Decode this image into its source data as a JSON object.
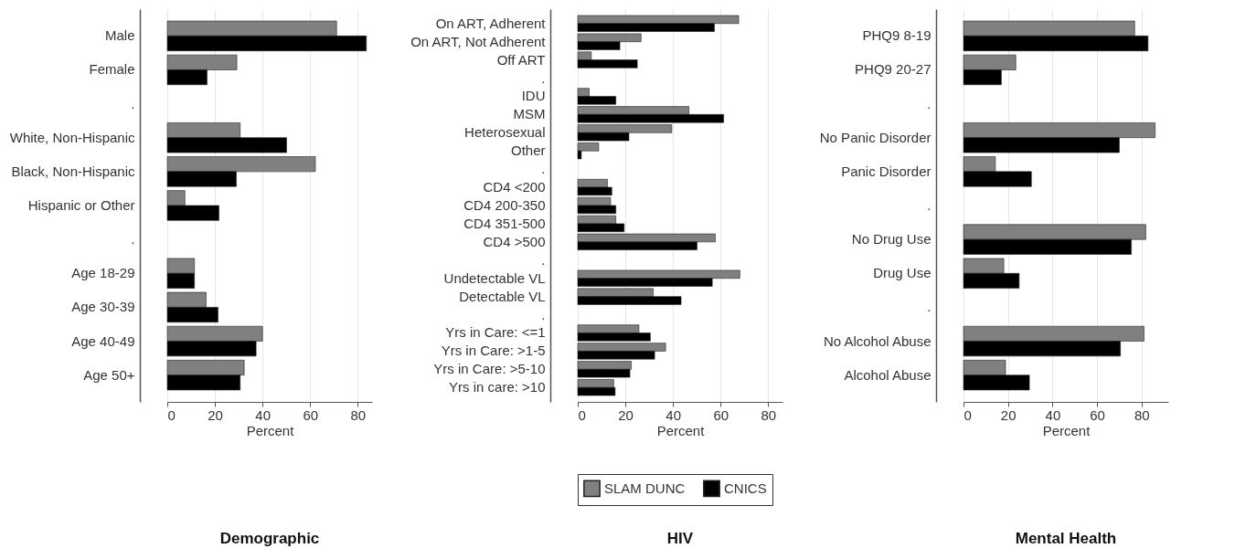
{
  "chart_data": [
    {
      "type": "bar",
      "orientation": "horizontal",
      "title": "Demographic",
      "xlabel": "Percent",
      "categories": [
        "Male",
        "Female",
        ".",
        "White, Non-Hispanic",
        "Black, Non-Hispanic",
        "Hispanic or Other",
        ".",
        "Age 18-29",
        "Age 30-39",
        "Age 40-49",
        "Age 50+"
      ],
      "series": [
        {
          "color": "#808080",
          "values": [
            71.1,
            29.2,
            null,
            30.6,
            62.2,
            7.4,
            null,
            11.4,
            16.3,
            40.0,
            32.3
          ]
        },
        {
          "color": "#000000",
          "values": [
            83.6,
            16.7,
            null,
            50.1,
            29.0,
            21.7,
            null,
            11.4,
            21.3,
            37.3,
            30.6
          ]
        }
      ],
      "xlim": [
        0,
        86
      ],
      "xticks": [
        0,
        20,
        40,
        60,
        80
      ],
      "grid": "x",
      "legend": false
    },
    {
      "type": "bar",
      "orientation": "horizontal",
      "title": "HIV",
      "xlabel": "Percent",
      "categories": [
        "On ART, Adherent",
        "On ART, Not Adherent",
        "Off ART",
        ".",
        "IDU",
        "MSM",
        "Heterosexual",
        "Other",
        ".",
        "CD4 <200",
        "CD4 200-350",
        "CD4 351-500",
        "CD4 >500",
        ".",
        "Undetectable VL",
        "Detectable VL",
        ".",
        "Yrs in Care: <=1",
        "Yrs in Care: >1-5",
        "Yrs in Care: >5-10",
        "Yrs in care: >10"
      ],
      "series": [
        {
          "name": "SLAM DUNC",
          "color": "#808080",
          "values": [
            67.6,
            26.6,
            5.7,
            null,
            4.8,
            46.7,
            39.5,
            8.8,
            null,
            12.5,
            13.8,
            16.0,
            57.8,
            null,
            68.1,
            31.7,
            null,
            25.7,
            36.9,
            22.5,
            15.1
          ]
        },
        {
          "name": "CNICS",
          "color": "#000000",
          "values": [
            57.4,
            17.7,
            25.0,
            null,
            16.0,
            61.3,
            21.5,
            1.5,
            null,
            14.3,
            16.0,
            19.5,
            50.1,
            null,
            56.5,
            43.4,
            null,
            30.5,
            32.3,
            21.9,
            15.7
          ]
        }
      ],
      "xlim": [
        0,
        86
      ],
      "xticks": [
        0,
        20,
        40,
        60,
        80
      ],
      "grid": "x",
      "legend": "bottom"
    },
    {
      "type": "bar",
      "orientation": "horizontal",
      "title": "Mental Health",
      "xlabel": "Percent",
      "categories": [
        "PHQ9 8-19",
        "PHQ9 20-27",
        ".",
        "No Panic Disorder",
        "Panic Disorder",
        ".",
        "No Drug Use",
        "Drug Use",
        ".",
        "No Alcohol Abuse",
        "Alcohol Abuse"
      ],
      "series": [
        {
          "color": "#808080",
          "values": [
            76.9,
            23.5,
            null,
            86.1,
            14.3,
            null,
            81.9,
            18.1,
            null,
            81.1,
            18.9
          ]
        },
        {
          "color": "#000000",
          "values": [
            82.9,
            17.0,
            null,
            70.0,
            30.5,
            null,
            75.4,
            25.0,
            null,
            70.5,
            29.6
          ]
        }
      ],
      "xlim": [
        0,
        92
      ],
      "xticks": [
        0,
        20,
        40,
        60,
        80
      ],
      "grid": "x",
      "legend": false
    }
  ]
}
